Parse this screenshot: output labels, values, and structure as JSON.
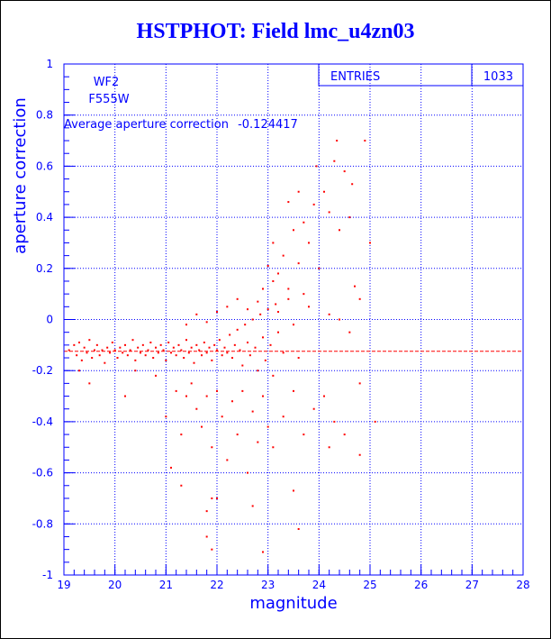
{
  "chart_data": {
    "type": "scatter",
    "title": "HSTPHOT: Field lmc_u4zn03",
    "xlabel": "magnitude",
    "ylabel": "aperture correction",
    "xlim": [
      19,
      28
    ],
    "ylim": [
      -1,
      1
    ],
    "x_ticks": [
      "19",
      "20",
      "21",
      "22",
      "23",
      "24",
      "25",
      "26",
      "27",
      "28"
    ],
    "y_ticks": [
      "1",
      "0.8",
      "0.6",
      "0.4",
      "0.2",
      "0",
      "-0.2",
      "-0.4",
      "-0.6",
      "-0.8",
      "-1"
    ],
    "grid": true,
    "chip": "WF2",
    "filter": "F555W",
    "average_label": "Average aperture correction",
    "average_value": -0.124417,
    "average_value_text": "-0.124417",
    "entries_label": "ENTRIES",
    "entries_value": "1033",
    "points": [
      [
        19.1,
        -0.12
      ],
      [
        19.2,
        -0.1
      ],
      [
        19.25,
        -0.14
      ],
      [
        19.3,
        -0.09
      ],
      [
        19.35,
        -0.16
      ],
      [
        19.4,
        -0.11
      ],
      [
        19.45,
        -0.13
      ],
      [
        19.5,
        -0.08
      ],
      [
        19.55,
        -0.15
      ],
      [
        19.6,
        -0.12
      ],
      [
        19.65,
        -0.1
      ],
      [
        19.7,
        -0.14
      ],
      [
        19.75,
        -0.12
      ],
      [
        19.8,
        -0.17
      ],
      [
        19.85,
        -0.11
      ],
      [
        19.9,
        -0.13
      ],
      [
        19.95,
        -0.09
      ],
      [
        20.0,
        -0.12
      ],
      [
        20.05,
        -0.15
      ],
      [
        20.1,
        -0.11
      ],
      [
        20.15,
        -0.13
      ],
      [
        20.2,
        -0.1
      ],
      [
        20.25,
        -0.14
      ],
      [
        20.3,
        -0.12
      ],
      [
        20.35,
        -0.08
      ],
      [
        20.4,
        -0.16
      ],
      [
        20.45,
        -0.11
      ],
      [
        20.5,
        -0.13
      ],
      [
        20.55,
        -0.1
      ],
      [
        20.6,
        -0.14
      ],
      [
        20.65,
        -0.12
      ],
      [
        20.7,
        -0.09
      ],
      [
        20.75,
        -0.15
      ],
      [
        20.8,
        -0.11
      ],
      [
        20.85,
        -0.13
      ],
      [
        20.9,
        -0.1
      ],
      [
        20.95,
        -0.12
      ],
      [
        21.0,
        -0.16
      ],
      [
        21.05,
        -0.09
      ],
      [
        21.1,
        -0.13
      ],
      [
        21.15,
        -0.11
      ],
      [
        21.2,
        -0.14
      ],
      [
        21.25,
        -0.1
      ],
      [
        21.3,
        -0.12
      ],
      [
        21.35,
        -0.15
      ],
      [
        21.4,
        -0.08
      ],
      [
        21.45,
        -0.13
      ],
      [
        21.5,
        -0.11
      ],
      [
        21.55,
        -0.17
      ],
      [
        21.6,
        -0.1
      ],
      [
        21.65,
        -0.12
      ],
      [
        21.7,
        -0.14
      ],
      [
        21.75,
        -0.09
      ],
      [
        21.8,
        -0.13
      ],
      [
        21.85,
        -0.11
      ],
      [
        21.9,
        -0.16
      ],
      [
        21.95,
        -0.1
      ],
      [
        22.0,
        -0.12
      ],
      [
        22.05,
        -0.08
      ],
      [
        22.1,
        -0.14
      ],
      [
        22.15,
        -0.11
      ],
      [
        22.2,
        -0.13
      ],
      [
        22.25,
        -0.06
      ],
      [
        22.3,
        -0.15
      ],
      [
        22.35,
        -0.1
      ],
      [
        22.4,
        -0.04
      ],
      [
        22.45,
        -0.12
      ],
      [
        22.5,
        -0.18
      ],
      [
        22.55,
        -0.02
      ],
      [
        22.6,
        -0.09
      ],
      [
        22.65,
        -0.14
      ],
      [
        22.7,
        0.0
      ],
      [
        22.75,
        -0.11
      ],
      [
        22.8,
        -0.2
      ],
      [
        22.85,
        0.02
      ],
      [
        22.9,
        -0.07
      ],
      [
        22.95,
        -0.16
      ],
      [
        23.0,
        0.04
      ],
      [
        23.05,
        -0.1
      ],
      [
        23.1,
        -0.22
      ],
      [
        23.15,
        0.06
      ],
      [
        23.2,
        -0.05
      ],
      [
        23.3,
        -0.13
      ],
      [
        23.4,
        0.08
      ],
      [
        23.5,
        -0.02
      ],
      [
        23.6,
        -0.15
      ],
      [
        23.7,
        0.1
      ],
      [
        23.8,
        0.05
      ],
      [
        19.3,
        -0.2
      ],
      [
        19.5,
        -0.25
      ],
      [
        20.2,
        -0.3
      ],
      [
        20.4,
        -0.2
      ],
      [
        20.8,
        -0.22
      ],
      [
        21.0,
        -0.38
      ],
      [
        21.2,
        -0.28
      ],
      [
        21.3,
        -0.45
      ],
      [
        21.4,
        -0.3
      ],
      [
        21.5,
        -0.25
      ],
      [
        21.6,
        -0.35
      ],
      [
        21.7,
        -0.42
      ],
      [
        21.8,
        -0.3
      ],
      [
        21.9,
        -0.5
      ],
      [
        22.0,
        -0.28
      ],
      [
        22.1,
        -0.38
      ],
      [
        22.2,
        -0.55
      ],
      [
        22.3,
        -0.32
      ],
      [
        22.4,
        -0.45
      ],
      [
        22.5,
        -0.28
      ],
      [
        22.6,
        -0.6
      ],
      [
        22.7,
        -0.36
      ],
      [
        22.8,
        -0.48
      ],
      [
        22.9,
        -0.3
      ],
      [
        23.0,
        -0.42
      ],
      [
        23.1,
        -0.5
      ],
      [
        23.3,
        -0.38
      ],
      [
        23.5,
        -0.28
      ],
      [
        23.7,
        -0.45
      ],
      [
        23.9,
        -0.35
      ],
      [
        24.1,
        -0.3
      ],
      [
        24.3,
        -0.4
      ],
      [
        24.5,
        -0.45
      ],
      [
        24.8,
        -0.25
      ],
      [
        21.1,
        -0.58
      ],
      [
        21.3,
        -0.65
      ],
      [
        21.8,
        -0.75
      ],
      [
        21.9,
        -0.7
      ],
      [
        21.8,
        -0.85
      ],
      [
        22.0,
        -0.7
      ],
      [
        21.9,
        -0.9
      ],
      [
        22.7,
        -0.73
      ],
      [
        22.9,
        -0.91
      ],
      [
        23.5,
        -0.67
      ],
      [
        23.6,
        -0.82
      ],
      [
        24.2,
        -0.5
      ],
      [
        24.8,
        -0.53
      ],
      [
        25.1,
        -0.4
      ],
      [
        21.4,
        -0.02
      ],
      [
        21.6,
        0.02
      ],
      [
        21.8,
        -0.01
      ],
      [
        22.0,
        0.03
      ],
      [
        22.2,
        0.05
      ],
      [
        22.4,
        0.08
      ],
      [
        22.6,
        0.04
      ],
      [
        22.8,
        0.07
      ],
      [
        22.9,
        0.12
      ],
      [
        23.1,
        0.15
      ],
      [
        23.2,
        0.18
      ],
      [
        23.3,
        0.25
      ],
      [
        23.4,
        0.12
      ],
      [
        23.5,
        0.35
      ],
      [
        23.6,
        0.22
      ],
      [
        23.7,
        0.38
      ],
      [
        23.8,
        0.3
      ],
      [
        23.9,
        0.45
      ],
      [
        23.95,
        0.6
      ],
      [
        24.0,
        0.2
      ],
      [
        24.1,
        0.5
      ],
      [
        24.2,
        0.42
      ],
      [
        24.3,
        0.62
      ],
      [
        24.35,
        0.7
      ],
      [
        24.4,
        0.35
      ],
      [
        24.5,
        0.58
      ],
      [
        24.6,
        0.4
      ],
      [
        24.65,
        0.53
      ],
      [
        24.7,
        0.13
      ],
      [
        24.9,
        0.7
      ],
      [
        25.0,
        0.3
      ],
      [
        24.2,
        0.02
      ],
      [
        24.4,
        0.0
      ],
      [
        24.6,
        -0.05
      ],
      [
        24.8,
        0.08
      ],
      [
        23.4,
        0.46
      ],
      [
        23.6,
        0.5
      ],
      [
        23.1,
        0.3
      ],
      [
        23.0,
        0.21
      ],
      [
        23.2,
        0.03
      ]
    ]
  }
}
